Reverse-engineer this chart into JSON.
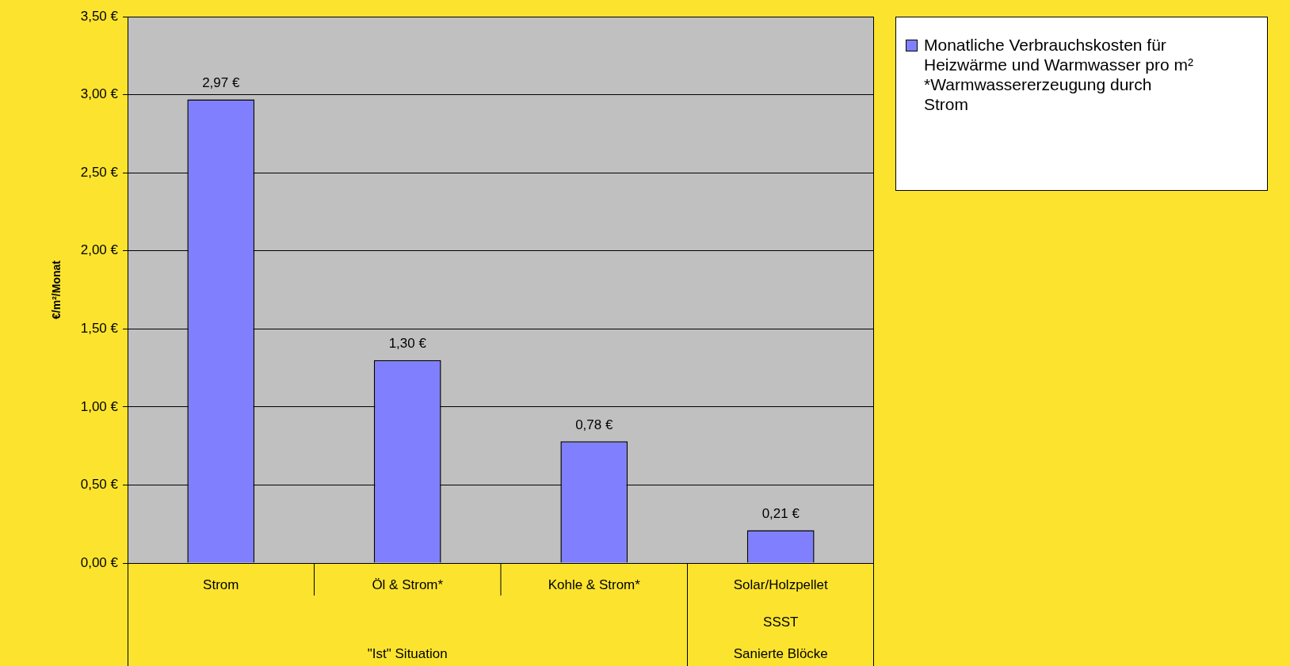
{
  "chart_data": {
    "type": "bar",
    "ylabel": "€/m²/Monat",
    "categories": [
      "Strom",
      "Öl & Strom*",
      "Kohle & Strom*",
      "Solar/Holzpellet"
    ],
    "series": [
      {
        "name": "Monatliche Verbrauchskosten für Heizwärme und Warmwasser pro m² *Warmwassererzeugung durch Strom",
        "color": "#8080ff",
        "values": [
          2.97,
          1.3,
          0.78,
          0.21
        ],
        "value_labels": [
          "2,97 €",
          "1,30 €",
          "0,78 €",
          "0,21 €"
        ]
      }
    ],
    "ylim": [
      0,
      3.5
    ],
    "yticks": [
      {
        "value": 0,
        "label": "0,00 €"
      },
      {
        "value": 0.5,
        "label": "0,50 €"
      },
      {
        "value": 1,
        "label": "1,00 €"
      },
      {
        "value": 1.5,
        "label": "1,50 €"
      },
      {
        "value": 2,
        "label": "2,00 €"
      },
      {
        "value": 2.5,
        "label": "2,50 €"
      },
      {
        "value": 3,
        "label": "3,00 €"
      },
      {
        "value": 3.5,
        "label": "3,50 €"
      }
    ],
    "grid": "y",
    "legend": "top right",
    "annotations": [
      "SSST",
      "\"Ist\" Situation",
      "Sanierte Blöcke"
    ]
  }
}
